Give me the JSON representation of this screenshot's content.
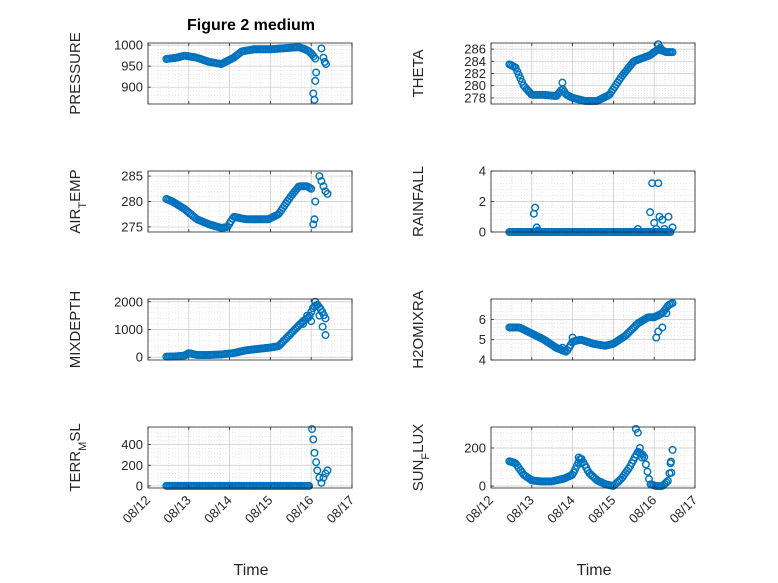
{
  "figure": {
    "title": "Figure 2 medium",
    "marker_color": "#0072BD",
    "marker": "open-circle"
  },
  "chart_data": [
    {
      "type": "scatter",
      "ylabel": "PRESSURE",
      "xlim": [
        "08/12",
        "08/17"
      ],
      "ylim": [
        860,
        1005
      ],
      "yticks": [
        900,
        950,
        1000
      ],
      "xticks": [
        "08/12",
        "08/13",
        "08/14",
        "08/15",
        "08/16",
        "08/17"
      ],
      "grid": "on",
      "minor_grid": "on",
      "keypoints_x": [
        12.45,
        12.7,
        12.9,
        13.2,
        13.5,
        13.8,
        14.1,
        14.3,
        14.6,
        15.0,
        15.4,
        15.7,
        15.85,
        15.95,
        16.0,
        16.05,
        16.1
      ],
      "keypoints_y": [
        967,
        970,
        975,
        970,
        960,
        955,
        970,
        985,
        990,
        990,
        993,
        995,
        990,
        985,
        980,
        975,
        968
      ],
      "extra_points": [
        {
          "x": 16.05,
          "y": 885
        },
        {
          "x": 16.08,
          "y": 870
        },
        {
          "x": 16.1,
          "y": 915
        },
        {
          "x": 16.12,
          "y": 935
        },
        {
          "x": 16.25,
          "y": 992
        },
        {
          "x": 16.3,
          "y": 970
        },
        {
          "x": 16.33,
          "y": 960
        },
        {
          "x": 16.36,
          "y": 955
        }
      ]
    },
    {
      "type": "scatter",
      "ylabel": "THETA",
      "xlim": [
        "08/12",
        "08/17"
      ],
      "ylim": [
        277,
        287
      ],
      "yticks": [
        278,
        280,
        282,
        284,
        286
      ],
      "xticks": [
        "08/12",
        "08/13",
        "08/14",
        "08/15",
        "08/16",
        "08/17"
      ],
      "grid": "on",
      "minor_grid": "on",
      "keypoints_x": [
        12.45,
        12.6,
        12.8,
        13.0,
        13.3,
        13.6,
        13.75,
        13.85,
        14.0,
        14.3,
        14.6,
        14.9,
        15.2,
        15.5,
        15.7,
        15.9,
        16.0,
        16.1,
        16.3,
        16.45
      ],
      "keypoints_y": [
        283.5,
        283.0,
        280.0,
        278.5,
        278.5,
        278.3,
        279.5,
        278.5,
        278.0,
        277.5,
        277.5,
        278.5,
        281.5,
        284.0,
        284.5,
        285.0,
        285.5,
        286.0,
        285.5,
        285.5
      ],
      "extra_points": [
        {
          "x": 13.75,
          "y": 280.5
        },
        {
          "x": 16.1,
          "y": 286.8
        },
        {
          "x": 16.15,
          "y": 286.2
        }
      ]
    },
    {
      "type": "scatter",
      "ylabel": "AIR_TEMP",
      "xlim": [
        "08/12",
        "08/17"
      ],
      "ylim": [
        274,
        286
      ],
      "yticks": [
        275,
        280,
        285
      ],
      "xticks": [
        "08/12",
        "08/13",
        "08/14",
        "08/15",
        "08/16",
        "08/17"
      ],
      "grid": "on",
      "minor_grid": "on",
      "keypoints_x": [
        12.45,
        12.6,
        12.9,
        13.2,
        13.5,
        13.8,
        13.95,
        14.1,
        14.4,
        14.7,
        14.95,
        15.2,
        15.5,
        15.7,
        15.9,
        16.0
      ],
      "keypoints_y": [
        280.5,
        280.0,
        278.5,
        276.5,
        275.5,
        274.8,
        275.0,
        277.0,
        276.5,
        276.5,
        276.5,
        277.5,
        281.0,
        283.0,
        283.0,
        282.5
      ],
      "extra_points": [
        {
          "x": 16.05,
          "y": 275.5
        },
        {
          "x": 16.08,
          "y": 276.5
        },
        {
          "x": 16.1,
          "y": 280.0
        },
        {
          "x": 16.2,
          "y": 285.0
        },
        {
          "x": 16.25,
          "y": 284.0
        },
        {
          "x": 16.3,
          "y": 283.0
        },
        {
          "x": 16.35,
          "y": 282.0
        },
        {
          "x": 16.4,
          "y": 281.5
        }
      ]
    },
    {
      "type": "scatter",
      "ylabel": "RAINFALL",
      "xlim": [
        "08/12",
        "08/17"
      ],
      "ylim": [
        0,
        4
      ],
      "yticks": [
        0,
        2,
        4
      ],
      "xticks": [
        "08/12",
        "08/13",
        "08/14",
        "08/15",
        "08/16",
        "08/17"
      ],
      "grid": "on",
      "minor_grid": "on",
      "keypoints_x": [
        12.45,
        16.4
      ],
      "keypoints_y": [
        0,
        0
      ],
      "extra_points": [
        {
          "x": 13.05,
          "y": 1.2
        },
        {
          "x": 13.08,
          "y": 1.6
        },
        {
          "x": 13.12,
          "y": 0.3
        },
        {
          "x": 13.15,
          "y": 0.1
        },
        {
          "x": 15.6,
          "y": 0.2
        },
        {
          "x": 15.9,
          "y": 1.3
        },
        {
          "x": 15.95,
          "y": 3.2
        },
        {
          "x": 16.0,
          "y": 0.6
        },
        {
          "x": 16.05,
          "y": 0.2
        },
        {
          "x": 16.1,
          "y": 3.2
        },
        {
          "x": 16.13,
          "y": 1.0
        },
        {
          "x": 16.2,
          "y": 0.8
        },
        {
          "x": 16.25,
          "y": 0.2
        },
        {
          "x": 16.35,
          "y": 1.0
        },
        {
          "x": 16.45,
          "y": 0.3
        }
      ]
    },
    {
      "type": "scatter",
      "ylabel": "MIXDEPTH",
      "xlim": [
        "08/12",
        "08/17"
      ],
      "ylim": [
        -100,
        2100
      ],
      "yticks": [
        0,
        1000,
        2000
      ],
      "xticks": [
        "08/12",
        "08/13",
        "08/14",
        "08/15",
        "08/16",
        "08/17"
      ],
      "grid": "on",
      "minor_grid": "on",
      "keypoints_x": [
        12.45,
        12.7,
        12.9,
        13.0,
        13.2,
        13.5,
        13.8,
        14.1,
        14.4,
        14.7,
        15.0,
        15.2,
        15.4,
        15.6,
        15.8,
        15.95,
        16.05,
        16.15,
        16.25,
        16.35
      ],
      "keypoints_y": [
        20,
        30,
        60,
        150,
        80,
        80,
        100,
        150,
        250,
        300,
        350,
        400,
        700,
        1000,
        1300,
        1450,
        1800,
        1900,
        1700,
        1400
      ],
      "extra_points": [
        {
          "x": 15.8,
          "y": 1200
        },
        {
          "x": 15.9,
          "y": 1500
        },
        {
          "x": 16.0,
          "y": 1300
        },
        {
          "x": 16.1,
          "y": 2000
        },
        {
          "x": 16.2,
          "y": 1500
        },
        {
          "x": 16.28,
          "y": 1100
        },
        {
          "x": 16.35,
          "y": 800
        }
      ]
    },
    {
      "type": "scatter",
      "ylabel": "H2OMIXRA",
      "xlim": [
        "08/12",
        "08/17"
      ],
      "ylim": [
        4,
        7
      ],
      "yticks": [
        4,
        5,
        6
      ],
      "xticks": [
        "08/12",
        "08/13",
        "08/14",
        "08/15",
        "08/16",
        "08/17"
      ],
      "grid": "on",
      "minor_grid": "on",
      "keypoints_x": [
        12.45,
        12.7,
        13.0,
        13.3,
        13.6,
        13.85,
        14.0,
        14.2,
        14.5,
        14.8,
        15.0,
        15.3,
        15.6,
        15.85,
        16.0,
        16.2,
        16.35,
        16.45
      ],
      "keypoints_y": [
        5.6,
        5.6,
        5.3,
        5.0,
        4.6,
        4.4,
        4.9,
        5.0,
        4.8,
        4.7,
        4.8,
        5.2,
        5.8,
        6.1,
        6.1,
        6.3,
        6.7,
        6.8
      ],
      "extra_points": [
        {
          "x": 13.75,
          "y": 4.6
        },
        {
          "x": 14.0,
          "y": 5.1
        },
        {
          "x": 16.05,
          "y": 5.1
        },
        {
          "x": 16.1,
          "y": 5.4
        },
        {
          "x": 16.2,
          "y": 5.6
        },
        {
          "x": 16.3,
          "y": 6.3
        }
      ]
    },
    {
      "type": "scatter",
      "ylabel": "TERR_MSL",
      "xlim": [
        "08/12",
        "08/17"
      ],
      "ylim": [
        -20,
        570
      ],
      "yticks": [
        0,
        200,
        400
      ],
      "xticks": [
        "08/12",
        "08/13",
        "08/14",
        "08/15",
        "08/16",
        "08/17"
      ],
      "grid": "on",
      "minor_grid": "on",
      "keypoints_x": [
        12.45,
        15.95
      ],
      "keypoints_y": [
        0,
        0
      ],
      "extra_points": [
        {
          "x": 16.02,
          "y": 550
        },
        {
          "x": 16.05,
          "y": 450
        },
        {
          "x": 16.08,
          "y": 320
        },
        {
          "x": 16.12,
          "y": 230
        },
        {
          "x": 16.15,
          "y": 150
        },
        {
          "x": 16.2,
          "y": 80
        },
        {
          "x": 16.25,
          "y": 30
        },
        {
          "x": 16.3,
          "y": 80
        },
        {
          "x": 16.35,
          "y": 120
        },
        {
          "x": 16.4,
          "y": 150
        }
      ]
    },
    {
      "type": "scatter",
      "ylabel": "SUN_FLUX",
      "xlim": [
        "08/12",
        "08/17"
      ],
      "ylim": [
        -10,
        310
      ],
      "yticks": [
        0,
        200
      ],
      "xticks": [
        "08/12",
        "08/13",
        "08/14",
        "08/15",
        "08/16",
        "08/17"
      ],
      "grid": "on",
      "minor_grid": "on",
      "keypoints_x": [
        12.45,
        12.6,
        12.8,
        13.0,
        13.2,
        13.5,
        13.8,
        14.0,
        14.2,
        14.4,
        14.6,
        14.8,
        15.0,
        15.2,
        15.4,
        15.6,
        15.75,
        15.9,
        16.05,
        16.2,
        16.35,
        16.45
      ],
      "keypoints_y": [
        130,
        120,
        60,
        30,
        25,
        25,
        40,
        60,
        150,
        70,
        30,
        10,
        0,
        40,
        100,
        180,
        160,
        10,
        0,
        0,
        30,
        190
      ],
      "extra_points": [
        {
          "x": 15.55,
          "y": 300
        },
        {
          "x": 15.6,
          "y": 280
        },
        {
          "x": 15.65,
          "y": 200
        },
        {
          "x": 15.7,
          "y": 150
        },
        {
          "x": 14.15,
          "y": 150
        },
        {
          "x": 14.2,
          "y": 120
        },
        {
          "x": 16.4,
          "y": 120
        },
        {
          "x": 16.42,
          "y": 70
        }
      ]
    }
  ],
  "xlabels": [
    "Time",
    "Time"
  ]
}
